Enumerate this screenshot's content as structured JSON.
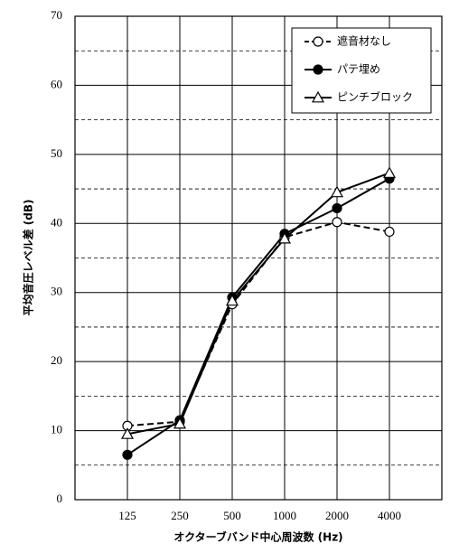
{
  "chart_data": {
    "type": "line",
    "y_label": "平均音圧レベル差 (dB)",
    "x_label": "オクターブバンド中心周波数 (Hz)",
    "categories": [
      "125",
      "250",
      "500",
      "1000",
      "2000",
      "4000"
    ],
    "series": [
      {
        "name": "遮音材なし",
        "color": "#000000",
        "dashed": true,
        "marker": "circle-open",
        "values": [
          10.7,
          11.3,
          28.3,
          38.0,
          40.2,
          38.8
        ]
      },
      {
        "name": "パテ埋め",
        "color": "#000000",
        "dashed": false,
        "marker": "circle-filled",
        "values": [
          6.5,
          11.5,
          29.3,
          38.5,
          42.2,
          46.5
        ]
      },
      {
        "name": "ピンチブロック",
        "color": "#000000",
        "dashed": false,
        "marker": "triangle-open",
        "values": [
          9.5,
          11.0,
          28.8,
          37.8,
          44.5,
          47.3
        ]
      }
    ],
    "ylim": [
      0,
      70
    ],
    "yticks": [
      0,
      10,
      20,
      30,
      40,
      50,
      60,
      70
    ],
    "minor_yticks": [
      5,
      15,
      25,
      35,
      45,
      55,
      65
    ],
    "grid": true,
    "legend": "upper right"
  }
}
